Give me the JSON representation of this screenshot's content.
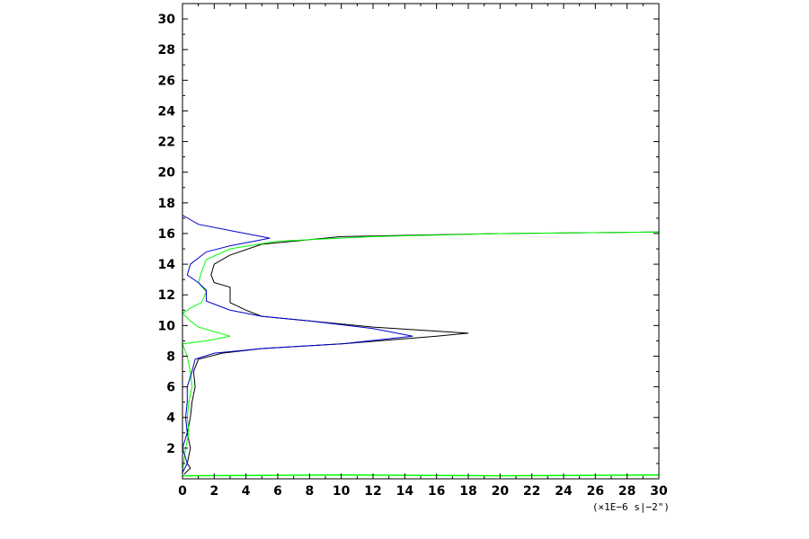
{
  "chart_data": {
    "type": "line",
    "title": "",
    "xlabel": "",
    "ylabel": "",
    "xlim": [
      0,
      30
    ],
    "ylim": [
      0,
      31
    ],
    "x_ticks": [
      "0",
      "2",
      "4",
      "6",
      "8",
      "10",
      "12",
      "14",
      "16",
      "18",
      "20",
      "22",
      "24",
      "26",
      "28",
      "30"
    ],
    "y_ticks": [
      "2",
      "4",
      "6",
      "8",
      "10",
      "12",
      "14",
      "16",
      "18",
      "20",
      "22",
      "24",
      "26",
      "28",
      "30"
    ],
    "unit_label": "(×1E−6 s|−2\")",
    "grid": false,
    "series": [
      {
        "color": "#000000",
        "points": [
          [
            0.1,
            0.3
          ],
          [
            0.5,
            0.7
          ],
          [
            0.3,
            1.0
          ],
          [
            0.5,
            2.0
          ],
          [
            0.3,
            3.0
          ],
          [
            0.5,
            4.0
          ],
          [
            0.6,
            5.0
          ],
          [
            0.8,
            6.0
          ],
          [
            0.7,
            7.0
          ],
          [
            1.0,
            7.8
          ],
          [
            2.5,
            8.2
          ],
          [
            5.0,
            8.5
          ],
          [
            10.0,
            8.8
          ],
          [
            16.0,
            9.3
          ],
          [
            18.0,
            9.5
          ],
          [
            12.0,
            9.9
          ],
          [
            8.0,
            10.3
          ],
          [
            5.0,
            10.6
          ],
          [
            4.0,
            11.0
          ],
          [
            3.0,
            11.5
          ],
          [
            3.0,
            12.5
          ],
          [
            2.0,
            12.8
          ],
          [
            1.8,
            13.3
          ],
          [
            2.0,
            14.0
          ],
          [
            3.0,
            14.6
          ],
          [
            5.0,
            15.3
          ],
          [
            10.0,
            15.8
          ],
          [
            20.0,
            16.0
          ],
          [
            30.0,
            16.1
          ]
        ]
      },
      {
        "color": "#00ff00",
        "points": [
          [
            0.0,
            0.5
          ],
          [
            0.2,
            2.0
          ],
          [
            0.4,
            3.0
          ],
          [
            0.3,
            4.0
          ],
          [
            0.4,
            5.0
          ],
          [
            0.6,
            6.0
          ],
          [
            0.5,
            7.0
          ],
          [
            0.3,
            8.0
          ],
          [
            0.0,
            8.8
          ],
          [
            1.5,
            9.0
          ],
          [
            3.0,
            9.3
          ],
          [
            2.0,
            9.6
          ],
          [
            1.0,
            9.9
          ],
          [
            0.5,
            10.3
          ],
          [
            0.0,
            10.8
          ],
          [
            0.6,
            11.2
          ],
          [
            1.2,
            11.5
          ],
          [
            1.5,
            12.2
          ],
          [
            1.0,
            12.8
          ],
          [
            1.2,
            13.5
          ],
          [
            1.5,
            14.3
          ],
          [
            3.0,
            15.0
          ],
          [
            6.0,
            15.5
          ],
          [
            12.0,
            15.8
          ],
          [
            20.0,
            16.0
          ],
          [
            30.0,
            16.1
          ]
        ]
      },
      {
        "color": "#0000cc",
        "points": [
          [
            0.0,
            0.4
          ],
          [
            0.3,
            1.0
          ],
          [
            0.0,
            2.0
          ],
          [
            0.3,
            3.0
          ],
          [
            0.2,
            4.0
          ],
          [
            0.3,
            5.0
          ],
          [
            0.3,
            6.0
          ],
          [
            0.6,
            7.0
          ],
          [
            0.8,
            7.8
          ],
          [
            2.0,
            8.2
          ],
          [
            5.0,
            8.5
          ],
          [
            10.0,
            8.8
          ],
          [
            14.5,
            9.3
          ],
          [
            12.0,
            9.8
          ],
          [
            8.0,
            10.3
          ],
          [
            5.0,
            10.6
          ],
          [
            3.0,
            11.0
          ],
          [
            1.5,
            11.6
          ],
          [
            1.5,
            12.3
          ],
          [
            1.0,
            12.8
          ],
          [
            0.3,
            13.3
          ],
          [
            0.5,
            14.0
          ],
          [
            1.5,
            14.8
          ],
          [
            3.0,
            15.2
          ],
          [
            5.5,
            15.7
          ],
          [
            3.0,
            16.2
          ],
          [
            1.0,
            16.6
          ],
          [
            0.0,
            17.2
          ],
          [
            0.0,
            31.0
          ]
        ]
      }
    ],
    "baseline_points": [
      [
        0.0,
        0.2
      ],
      [
        10.0,
        0.25
      ],
      [
        20.0,
        0.2
      ],
      [
        30.0,
        0.25
      ]
    ]
  }
}
